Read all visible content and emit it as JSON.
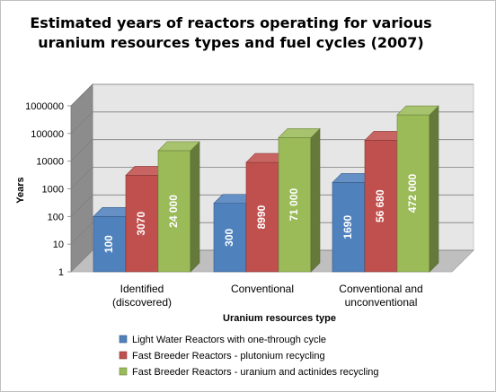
{
  "chart_data": {
    "type": "bar",
    "variant": "3d-clustered-column",
    "title_lines": [
      "Estimated years of reactors operating for various",
      "uranium resources types and fuel cycles (2007)"
    ],
    "xlabel": "Uranium resources type",
    "ylabel": "Years",
    "y_scale": "log",
    "ylim": [
      1,
      1000000
    ],
    "y_ticks": [
      "1",
      "10",
      "100",
      "1000",
      "10000",
      "100000",
      "1000000"
    ],
    "categories": [
      [
        "Identified",
        "(discovered)"
      ],
      [
        "Conventional"
      ],
      [
        "Conventional and",
        "unconventional"
      ]
    ],
    "series": [
      {
        "name": "Light Water Reactors with one-through cycle",
        "color": "#4f81bd",
        "values": [
          100,
          300,
          1690
        ],
        "labels": [
          "100",
          "300",
          "1690"
        ]
      },
      {
        "name": "Fast Breeder Reactors - plutonium recycling",
        "color": "#c0504d",
        "values": [
          3070,
          8990,
          56680
        ],
        "labels": [
          "3070",
          "8990",
          "56 680"
        ]
      },
      {
        "name": "Fast Breeder Reactors - uranium and actinides recycling",
        "color": "#9bbb59",
        "values": [
          24000,
          71000,
          472000
        ],
        "labels": [
          "24 000",
          "71 000",
          "472 000"
        ]
      }
    ],
    "legend_position": "bottom",
    "grid": true
  }
}
